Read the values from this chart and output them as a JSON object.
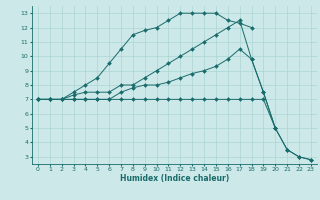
{
  "title": "",
  "xlabel": "Humidex (Indice chaleur)",
  "bg_color": "#cce8e8",
  "line_color": "#1a6b6b",
  "grid_color": "#aad4d4",
  "xlim": [
    -0.5,
    23.5
  ],
  "ylim": [
    2.5,
    13.5
  ],
  "xticks": [
    0,
    1,
    2,
    3,
    4,
    5,
    6,
    7,
    8,
    9,
    10,
    11,
    12,
    13,
    14,
    15,
    16,
    17,
    18,
    19,
    20,
    21,
    22,
    23
  ],
  "yticks": [
    3,
    4,
    5,
    6,
    7,
    8,
    9,
    10,
    11,
    12,
    13
  ],
  "lines": [
    {
      "x": [
        0,
        1,
        2,
        3,
        4,
        5,
        6,
        7,
        8,
        9,
        10,
        11,
        12,
        13,
        14,
        15,
        16,
        17,
        18
      ],
      "y": [
        7,
        7,
        7,
        7.5,
        8,
        8.5,
        9.5,
        10.5,
        11.5,
        11.8,
        12,
        12.5,
        13,
        13,
        13,
        13,
        12.5,
        12.3,
        12
      ]
    },
    {
      "x": [
        0,
        1,
        2,
        3,
        4,
        5,
        6,
        7,
        8,
        9,
        10,
        11,
        12,
        13,
        14,
        15,
        16,
        17,
        18,
        19,
        20
      ],
      "y": [
        7,
        7,
        7,
        7.3,
        7.5,
        7.5,
        7.5,
        8,
        8,
        8.5,
        9,
        9.5,
        10,
        10.5,
        11,
        11.5,
        12,
        12.5,
        9.8,
        7.5,
        5
      ]
    },
    {
      "x": [
        0,
        1,
        2,
        3,
        4,
        5,
        6,
        7,
        8,
        9,
        10,
        11,
        12,
        13,
        14,
        15,
        16,
        17,
        18,
        19,
        20,
        21,
        22,
        23
      ],
      "y": [
        7,
        7,
        7,
        7,
        7,
        7,
        7,
        7,
        7,
        7,
        7,
        7,
        7,
        7,
        7,
        7,
        7,
        7,
        7,
        7,
        5,
        3.5,
        3,
        2.8
      ]
    },
    {
      "x": [
        0,
        1,
        2,
        3,
        4,
        5,
        6,
        7,
        8,
        9,
        10,
        11,
        12,
        13,
        14,
        15,
        16,
        17,
        18,
        19,
        20,
        21,
        22,
        23
      ],
      "y": [
        7,
        7,
        7,
        7,
        7,
        7,
        7,
        7.5,
        7.8,
        8,
        8,
        8.2,
        8.5,
        8.8,
        9,
        9.3,
        9.8,
        10.5,
        9.8,
        7.5,
        5,
        3.5,
        3,
        2.8
      ]
    }
  ]
}
